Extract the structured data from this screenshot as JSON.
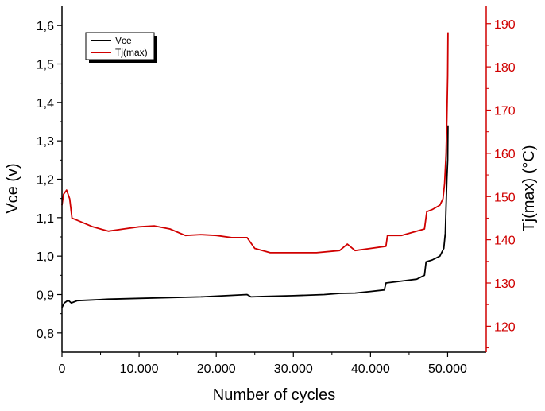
{
  "chart_data": {
    "type": "line",
    "xlabel": "Number of cycles",
    "ylabel_left": "Vce (v)",
    "ylabel_right": "Tj(max) (°C)",
    "xlim": [
      0,
      55000
    ],
    "ylim_left": [
      0.75,
      1.65
    ],
    "ylim_right": [
      114,
      194
    ],
    "x_ticks": [
      0,
      10000,
      20000,
      30000,
      40000,
      50000
    ],
    "x_tick_labels": [
      "0",
      "10.000",
      "20.000",
      "30.000",
      "40.000",
      "50.000"
    ],
    "y_left_ticks": [
      0.8,
      0.9,
      1.0,
      1.1,
      1.2,
      1.3,
      1.4,
      1.5,
      1.6
    ],
    "y_left_tick_labels": [
      "0,8",
      "0,9",
      "1,0",
      "1,1",
      "1,2",
      "1,3",
      "1,4",
      "1,5",
      "1,6"
    ],
    "y_right_ticks": [
      120,
      130,
      140,
      150,
      160,
      170,
      180,
      190
    ],
    "y_right_tick_labels": [
      "120",
      "130",
      "140",
      "150",
      "160",
      "170",
      "180",
      "190"
    ],
    "grid": false,
    "legend_position": "top-left",
    "series": [
      {
        "name": "Vce",
        "axis": "left",
        "color": "#000000",
        "x": [
          0,
          300,
          800,
          1200,
          2000,
          4000,
          6000,
          8000,
          10000,
          14000,
          18000,
          22000,
          24000,
          24500,
          26000,
          30000,
          34000,
          36000,
          38000,
          40000,
          41800,
          42000,
          44000,
          46000,
          47000,
          47200,
          48000,
          49000,
          49500,
          49700,
          49800,
          49900,
          50000,
          50050
        ],
        "values": [
          0.866,
          0.878,
          0.885,
          0.878,
          0.884,
          0.886,
          0.888,
          0.889,
          0.89,
          0.892,
          0.894,
          0.898,
          0.9,
          0.894,
          0.895,
          0.897,
          0.9,
          0.903,
          0.904,
          0.908,
          0.912,
          0.93,
          0.935,
          0.94,
          0.95,
          0.985,
          0.99,
          1.0,
          1.02,
          1.06,
          1.13,
          1.2,
          1.25,
          1.34
        ]
      },
      {
        "name": "Tj(max)",
        "axis": "right",
        "color": "#d00000",
        "x": [
          0,
          200,
          600,
          1000,
          1300,
          2000,
          4000,
          6000,
          8000,
          10000,
          12000,
          14000,
          16000,
          18000,
          20000,
          22000,
          24000,
          25000,
          27000,
          30000,
          33000,
          36000,
          37000,
          38000,
          40000,
          42000,
          42200,
          44000,
          46000,
          47000,
          47300,
          48000,
          49000,
          49400,
          49600,
          49800,
          49900,
          50000,
          50050
        ],
        "values": [
          148.0,
          150.5,
          151.5,
          149.5,
          145.0,
          144.5,
          143.0,
          142.0,
          142.5,
          143.0,
          143.2,
          142.5,
          141.0,
          141.2,
          141.0,
          140.5,
          140.5,
          138.0,
          137.0,
          137.0,
          137.0,
          137.5,
          139.0,
          137.5,
          138.0,
          138.5,
          141.0,
          141.0,
          142.0,
          142.5,
          146.5,
          147.0,
          148.0,
          149.5,
          153.0,
          160.0,
          168.0,
          178.0,
          188.0
        ]
      }
    ]
  }
}
